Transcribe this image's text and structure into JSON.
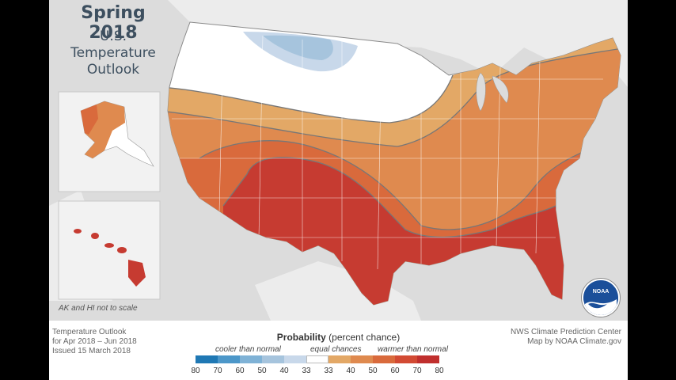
{
  "title": {
    "line1": "Spring 2018",
    "line2": "U.S.",
    "line3": "Temperature",
    "line4": "Outlook"
  },
  "inset_note": "AK and HI not to scale",
  "footer_left": {
    "line1": "Temperature Outlook",
    "line2": "for Apr 2018 – Jun 2018",
    "line3": "Issued 15 March 2018"
  },
  "footer_right": {
    "line1": "NWS Climate Prediction Center",
    "line2": "Map by NOAA Climate.gov"
  },
  "legend": {
    "title_bold": "Probability",
    "title_rest": "(percent chance)",
    "cooler": "cooler than normal",
    "equal": "equal chances",
    "warmer": "warmer than normal",
    "ticks": [
      "80",
      "70",
      "60",
      "50",
      "40",
      "33",
      "33",
      "40",
      "50",
      "60",
      "70",
      "80"
    ],
    "colors": [
      "#1f78b4",
      "#4c97c9",
      "#7fb2d6",
      "#a6c4dd",
      "#c8d8ea",
      "#ffffff",
      "#e3a866",
      "#df8a4f",
      "#d96a3c",
      "#d24a33",
      "#c02f2d"
    ]
  },
  "logo_text": "NOAA"
}
